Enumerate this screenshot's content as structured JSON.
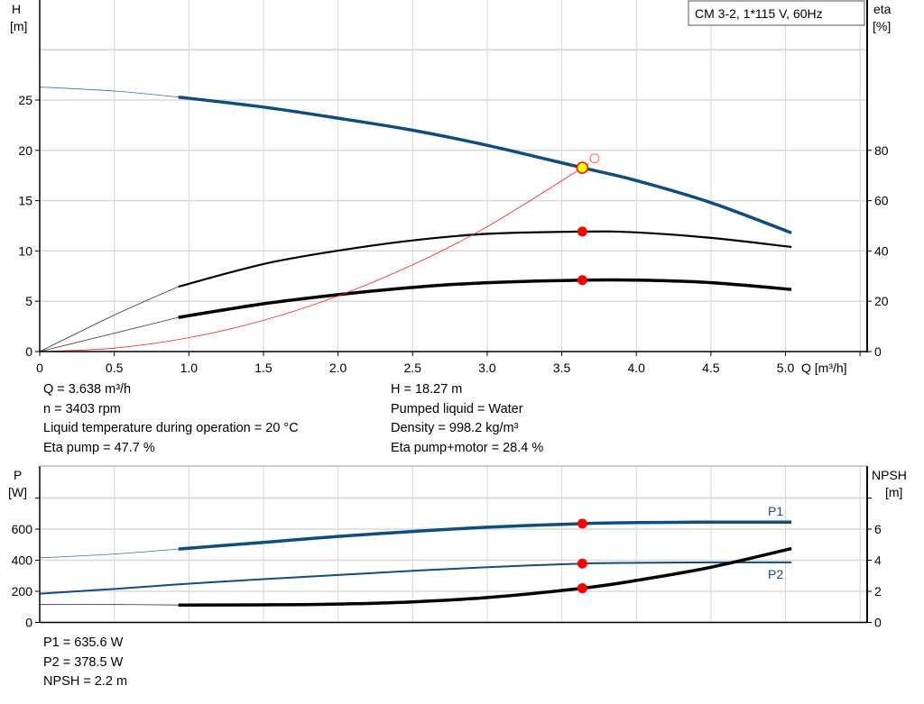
{
  "chart_data": [
    {
      "type": "line",
      "title": "CM 3-2, 1*115 V, 60Hz",
      "xlabel": "Q [m³/h]",
      "ylabel": "H",
      "ylabel_unit": "[m]",
      "y2label": "eta",
      "y2label_unit": "[%]",
      "xlim": [
        0,
        5.5
      ],
      "ylim": [
        0,
        35
      ],
      "y2lim": [
        0,
        125
      ],
      "xticks": [
        "0",
        "0.5",
        "1.0",
        "1.5",
        "2.0",
        "2.5",
        "3.0",
        "3.5",
        "4.0",
        "4.5",
        "5.0"
      ],
      "yticks": [
        "0",
        "5",
        "10",
        "15",
        "20",
        "25"
      ],
      "y2ticks": [
        "0",
        "20",
        "40",
        "60",
        "80"
      ],
      "grid": true,
      "legend": "top-right box",
      "series": [
        {
          "key": "H",
          "axis": "left",
          "color": "#0f4c81",
          "x": [
            0,
            0.5,
            0.93,
            1.5,
            2.0,
            2.5,
            3.0,
            3.638,
            4.0,
            4.5,
            5.04
          ],
          "y": [
            26.3,
            25.9,
            25.3,
            24.3,
            23.2,
            22.0,
            20.5,
            18.27,
            17.0,
            14.8,
            11.8
          ],
          "thin_until": 0.93
        },
        {
          "key": "eta_pump",
          "axis": "right",
          "color": "#000000",
          "x": [
            0,
            0.5,
            0.93,
            1.5,
            2.0,
            2.5,
            3.0,
            3.638,
            4.0,
            4.5,
            5.04
          ],
          "y": [
            0,
            14.5,
            25.8,
            34.8,
            40.1,
            44.2,
            46.8,
            47.7,
            47.4,
            45.2,
            41.6
          ],
          "thin_until": 0.93
        },
        {
          "key": "eta_pump_motor",
          "axis": "right",
          "color": "#000000",
          "x": [
            0,
            0.5,
            0.93,
            1.5,
            2.0,
            2.5,
            3.0,
            3.638,
            4.0,
            4.5,
            5.04
          ],
          "y": [
            0,
            7.3,
            13.6,
            19.0,
            22.6,
            25.5,
            27.4,
            28.4,
            28.4,
            27.4,
            24.7
          ],
          "thin_until": 0.93
        },
        {
          "key": "system_curve",
          "axis": "left",
          "color": "#ff2020",
          "x": [
            0,
            0.5,
            1.0,
            1.5,
            2.0,
            2.5,
            3.0,
            3.638
          ],
          "y": [
            0,
            0.34,
            1.38,
            3.1,
            5.52,
            8.62,
            12.41,
            18.27
          ]
        }
      ],
      "operating_points": [
        {
          "series": "H",
          "x": 3.638,
          "y": 18.27,
          "style": "yellow"
        },
        {
          "series": "eta_pump",
          "x": 3.638,
          "y": 47.7,
          "style": "red"
        },
        {
          "series": "eta_pump_motor",
          "x": 3.638,
          "y": 28.4,
          "style": "red"
        }
      ],
      "open_marker": {
        "x": 3.72,
        "y": 19.2
      }
    },
    {
      "type": "line",
      "ylabel": "P",
      "ylabel_unit": "[W]",
      "y2label": "NPSH",
      "y2label_unit": "[m]",
      "xlim": [
        0,
        5.5
      ],
      "ylim": [
        0,
        1000
      ],
      "y2lim": [
        0,
        10
      ],
      "yticks": [
        "0",
        "200",
        "400",
        "600"
      ],
      "y2ticks": [
        "0",
        "2",
        "4",
        "6"
      ],
      "grid": true,
      "series": [
        {
          "name": "P1",
          "key": "P1",
          "axis": "left",
          "color": "#0f4c81",
          "x": [
            0,
            0.5,
            0.93,
            1.5,
            2.0,
            2.5,
            3.0,
            3.638,
            4.0,
            4.5,
            5.04
          ],
          "y": [
            415,
            440,
            472,
            515,
            553,
            585,
            612,
            635.6,
            642,
            645,
            645
          ],
          "thin_until": 0.93
        },
        {
          "name": "P2",
          "key": "P2",
          "axis": "left",
          "color": "#0f4c81",
          "x": [
            0,
            0.5,
            0.93,
            1.5,
            2.0,
            2.5,
            3.0,
            3.638,
            4.0,
            4.5,
            5.04
          ],
          "y": [
            185,
            215,
            245,
            278,
            305,
            332,
            355,
            378.5,
            383,
            386,
            386
          ]
        },
        {
          "key": "NPSH",
          "axis": "right",
          "color": "#000000",
          "x": [
            0,
            0.5,
            0.93,
            1.5,
            2.0,
            2.5,
            3.0,
            3.638,
            4.0,
            4.5,
            5.04
          ],
          "y": [
            1.15,
            1.15,
            1.12,
            1.13,
            1.18,
            1.32,
            1.6,
            2.2,
            2.7,
            3.55,
            4.75
          ],
          "thin_until": 0.93
        }
      ],
      "operating_points": [
        {
          "series": "P1",
          "x": 3.638,
          "y": 635.6
        },
        {
          "series": "P2",
          "x": 3.638,
          "y": 378.5
        },
        {
          "series": "NPSH",
          "x": 3.638,
          "y": 2.2
        }
      ]
    }
  ],
  "info_top": {
    "left": [
      "Q = 3.638 m³/h",
      "n = 3403 rpm",
      "Liquid temperature during operation = 20 °C",
      "Eta pump = 47.7 %"
    ],
    "right": [
      "H = 18.27 m",
      "Pumped liquid = Water",
      "Density = 998.2 kg/m³",
      "Eta pump+motor = 28.4 %"
    ]
  },
  "info_bottom": [
    "P1 = 635.6 W",
    "P2 = 378.5 W",
    "NPSH = 2.2 m"
  ]
}
